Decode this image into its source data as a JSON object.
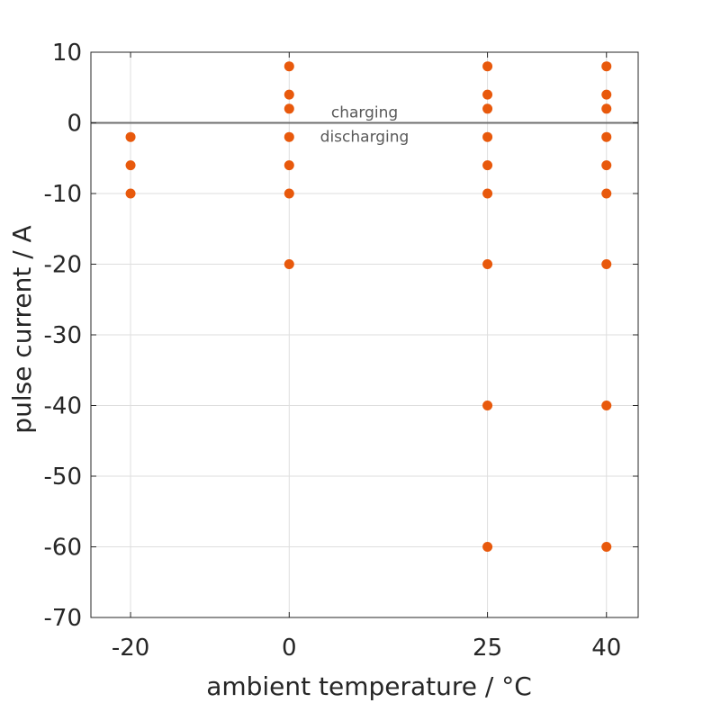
{
  "chart_data": {
    "type": "scatter",
    "xlabel": "ambient temperature / °C",
    "ylabel": "pulse current / A",
    "x_ticks": [
      -20,
      0,
      25,
      40
    ],
    "y_ticks": [
      10,
      0,
      -10,
      -20,
      -30,
      -40,
      -50,
      -60,
      -70
    ],
    "xlim": [
      -25,
      44
    ],
    "ylim": [
      -70,
      10
    ],
    "grid": true,
    "marker_color": "#E8590C",
    "reference_line": {
      "y": 0,
      "color": "#6E6E6E"
    },
    "annotations": [
      {
        "text": "charging",
        "x": 9.5,
        "y": 1.5
      },
      {
        "text": "discharging",
        "x": 9.5,
        "y": -1.9
      }
    ],
    "points": [
      {
        "x": -20,
        "y": -2
      },
      {
        "x": -20,
        "y": -6
      },
      {
        "x": -20,
        "y": -10
      },
      {
        "x": 0,
        "y": 8
      },
      {
        "x": 0,
        "y": 4
      },
      {
        "x": 0,
        "y": 2
      },
      {
        "x": 0,
        "y": -2
      },
      {
        "x": 0,
        "y": -6
      },
      {
        "x": 0,
        "y": -10
      },
      {
        "x": 0,
        "y": -20
      },
      {
        "x": 25,
        "y": 8
      },
      {
        "x": 25,
        "y": 4
      },
      {
        "x": 25,
        "y": 2
      },
      {
        "x": 25,
        "y": -2
      },
      {
        "x": 25,
        "y": -6
      },
      {
        "x": 25,
        "y": -10
      },
      {
        "x": 25,
        "y": -20
      },
      {
        "x": 25,
        "y": -40
      },
      {
        "x": 25,
        "y": -60
      },
      {
        "x": 40,
        "y": 8
      },
      {
        "x": 40,
        "y": 4
      },
      {
        "x": 40,
        "y": 2
      },
      {
        "x": 40,
        "y": -2
      },
      {
        "x": 40,
        "y": -6
      },
      {
        "x": 40,
        "y": -10
      },
      {
        "x": 40,
        "y": -20
      },
      {
        "x": 40,
        "y": -40
      },
      {
        "x": 40,
        "y": -60
      }
    ]
  }
}
